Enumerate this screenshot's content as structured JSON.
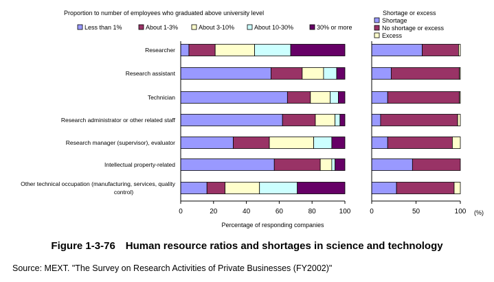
{
  "chart_data": [
    {
      "type": "bar",
      "orientation": "horizontal",
      "stacked": true,
      "title": "Proportion to number of employees who graduated above university level",
      "categories": [
        "Researcher",
        "Research assistant",
        "Technician",
        "Research administrator or other related staff",
        "Research manager (supervisor), evaluator",
        "Intellectual property-related",
        "Other technical occupation (manufacturing, services, quality control)"
      ],
      "series": [
        {
          "name": "Less than 1%",
          "color": "#9999ff",
          "values": [
            5,
            55,
            65,
            62,
            32,
            57,
            16
          ]
        },
        {
          "name": "About 1-3%",
          "color": "#993366",
          "values": [
            16,
            19,
            14,
            20,
            22,
            28,
            11
          ]
        },
        {
          "name": "About 3-10%",
          "color": "#ffffcc",
          "values": [
            24,
            13,
            12,
            12,
            27,
            7,
            21
          ]
        },
        {
          "name": "About 10-30%",
          "color": "#ccffff",
          "values": [
            22,
            8,
            5,
            3,
            11,
            2,
            23
          ]
        },
        {
          "name": "30% or more",
          "color": "#660066",
          "values": [
            33,
            5,
            4,
            3,
            8,
            6,
            29
          ]
        }
      ],
      "xlim": [
        0,
        100
      ],
      "xticks": [
        "0",
        "20",
        "40",
        "60",
        "80",
        "100"
      ],
      "grid": false,
      "legend": "top"
    },
    {
      "type": "bar",
      "orientation": "horizontal",
      "stacked": true,
      "title": "Shortage or excess",
      "categories": [
        "Researcher",
        "Research assistant",
        "Technician",
        "Research administrator or other related staff",
        "Research manager (supervisor), evaluator",
        "Intellectual property-related",
        "Other technical occupation (manufacturing, services, quality control)"
      ],
      "series": [
        {
          "name": "Shortage",
          "color": "#9999ff",
          "values": [
            57,
            22,
            18,
            10,
            18,
            46,
            28
          ]
        },
        {
          "name": "No shortage or excess",
          "color": "#993366",
          "values": [
            41,
            77,
            81,
            87,
            73,
            54,
            65
          ]
        },
        {
          "name": "Excess",
          "color": "#ffffcc",
          "values": [
            2,
            1,
            1,
            3,
            9,
            0,
            7
          ]
        }
      ],
      "xlim": [
        0,
        100
      ],
      "xticks": [
        "0",
        "50",
        "100"
      ],
      "unit": "(%)",
      "grid": false,
      "legend": "top-right"
    }
  ],
  "labels": {
    "shared_xlabel": "Percentage of responding companies",
    "caption": "Figure 1-3-76　Human resource ratios and shortages in science and technology",
    "source": "Source: MEXT. \"The Survey on Research Activities of Private Businesses (FY2002)\""
  }
}
